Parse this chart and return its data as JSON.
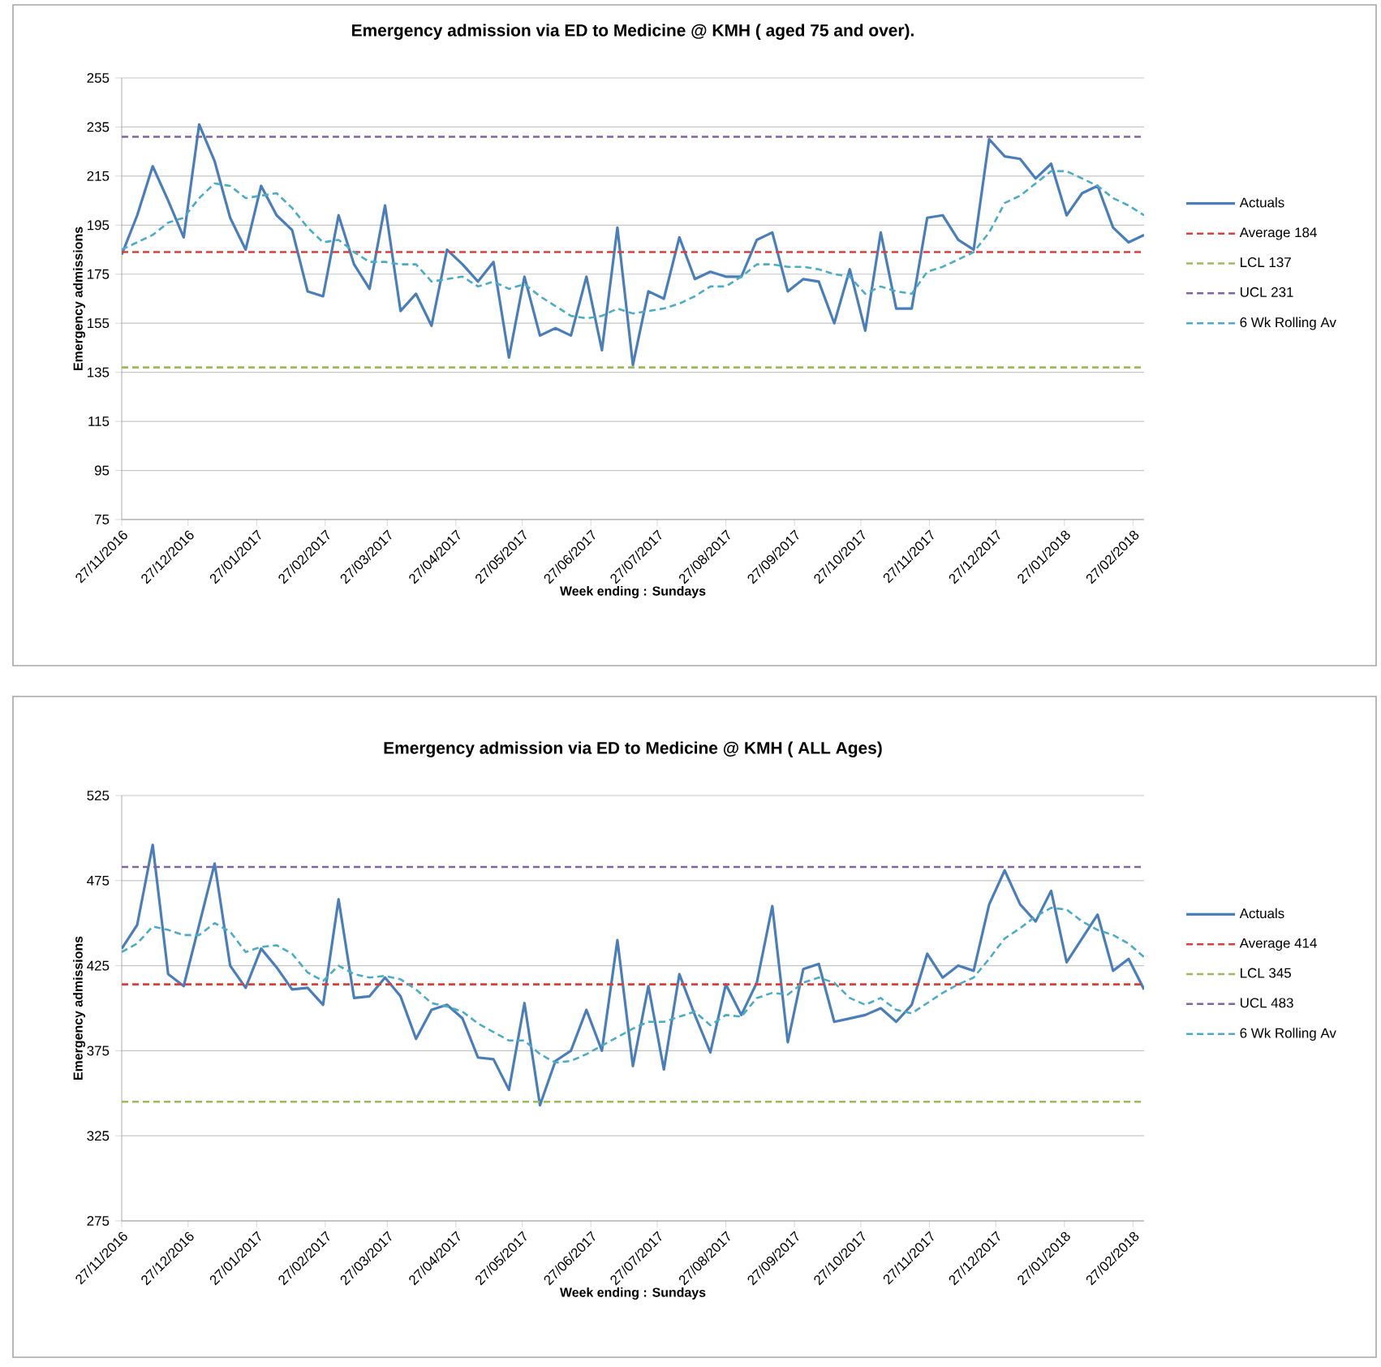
{
  "chart_data": [
    {
      "type": "line",
      "title": "Emergency admission via ED to Medicine @ KMH ( aged 75 and over).",
      "xlabel": "Week ending : Sundays",
      "ylabel": "Emergency admissions",
      "x": [
        "2016-11-27",
        "2016-12-04",
        "2016-12-11",
        "2016-12-18",
        "2016-12-25",
        "2017-01-01",
        "2017-01-08",
        "2017-01-15",
        "2017-01-22",
        "2017-01-29",
        "2017-02-05",
        "2017-02-12",
        "2017-02-19",
        "2017-02-26",
        "2017-03-05",
        "2017-03-12",
        "2017-03-19",
        "2017-03-26",
        "2017-04-02",
        "2017-04-09",
        "2017-04-16",
        "2017-04-23",
        "2017-04-30",
        "2017-05-07",
        "2017-05-14",
        "2017-05-21",
        "2017-05-28",
        "2017-06-04",
        "2017-06-11",
        "2017-06-18",
        "2017-06-25",
        "2017-07-02",
        "2017-07-09",
        "2017-07-16",
        "2017-07-23",
        "2017-07-30",
        "2017-08-06",
        "2017-08-13",
        "2017-08-20",
        "2017-08-27",
        "2017-09-03",
        "2017-09-10",
        "2017-09-17",
        "2017-09-24",
        "2017-10-01",
        "2017-10-08",
        "2017-10-15",
        "2017-10-22",
        "2017-10-29",
        "2017-11-05",
        "2017-11-12",
        "2017-11-19",
        "2017-11-26",
        "2017-12-03",
        "2017-12-10",
        "2017-12-17",
        "2017-12-24",
        "2017-12-31",
        "2018-01-07",
        "2018-01-14",
        "2018-01-21",
        "2018-01-28",
        "2018-02-04",
        "2018-02-11",
        "2018-02-18",
        "2018-02-25",
        "2018-03-04"
      ],
      "series": [
        {
          "name": "Actuals",
          "color": "#4a7ebb",
          "line_style": "solid",
          "values": [
            183,
            199,
            219,
            205,
            190,
            236,
            221,
            198,
            185,
            211,
            199,
            193,
            168,
            166,
            199,
            179,
            169,
            203,
            160,
            167,
            154,
            185,
            179,
            172,
            180,
            141,
            174,
            150,
            153,
            150,
            174,
            144,
            194,
            138,
            168,
            165,
            190,
            173,
            176,
            174,
            174,
            189,
            192,
            168,
            173,
            172,
            155,
            177,
            152,
            192,
            161,
            161,
            198,
            199,
            189,
            185,
            230,
            223,
            222,
            214,
            220,
            199,
            208,
            211,
            194,
            188,
            191
          ]
        },
        {
          "name": "6 Wk Rolling Av",
          "color": "#4bacc6",
          "line_style": "dashed",
          "values": [
            185,
            188,
            191,
            196,
            198,
            206,
            212,
            211,
            206,
            207,
            208,
            202,
            194,
            188,
            189,
            184,
            180,
            180,
            179,
            179,
            172,
            173,
            174,
            170,
            172,
            169,
            171,
            166,
            162,
            158,
            157,
            158,
            161,
            159,
            160,
            161,
            163,
            166,
            170,
            170,
            174,
            179,
            179,
            178,
            178,
            177,
            175,
            174,
            167,
            170,
            168,
            167,
            176,
            178,
            181,
            184,
            192,
            204,
            207,
            212,
            217,
            217,
            214,
            211,
            206,
            203,
            199
          ]
        }
      ],
      "ref_lines": [
        {
          "axis": "y",
          "value": 184,
          "label": "Average 184",
          "color": "#d9403b",
          "line_style": "dashed"
        },
        {
          "axis": "y",
          "value": 137,
          "label": "LCL 137",
          "color": "#9bbb59",
          "line_style": "dashed"
        },
        {
          "axis": "y",
          "value": 231,
          "label": "UCL 231",
          "color": "#8064a2",
          "line_style": "dashed"
        }
      ],
      "xlim": [
        "2016-11-27",
        "2018-03-04"
      ],
      "xticks": [
        {
          "value": "2016-11-27",
          "label": "27/11/2016"
        },
        {
          "value": "2016-12-27",
          "label": "27/12/2016"
        },
        {
          "value": "2017-01-27",
          "label": "27/01/2017"
        },
        {
          "value": "2017-02-27",
          "label": "27/02/2017"
        },
        {
          "value": "2017-03-27",
          "label": "27/03/2017"
        },
        {
          "value": "2017-04-27",
          "label": "27/04/2017"
        },
        {
          "value": "2017-05-27",
          "label": "27/05/2017"
        },
        {
          "value": "2017-06-27",
          "label": "27/06/2017"
        },
        {
          "value": "2017-07-27",
          "label": "27/07/2017"
        },
        {
          "value": "2017-08-27",
          "label": "27/08/2017"
        },
        {
          "value": "2017-09-27",
          "label": "27/09/2017"
        },
        {
          "value": "2017-10-27",
          "label": "27/10/2017"
        },
        {
          "value": "2017-11-27",
          "label": "27/11/2017"
        },
        {
          "value": "2017-12-27",
          "label": "27/12/2017"
        },
        {
          "value": "2018-01-27",
          "label": "27/01/2018"
        },
        {
          "value": "2018-02-27",
          "label": "27/02/2018"
        }
      ],
      "ylim": [
        75,
        255
      ],
      "yticks": [
        75,
        95,
        115,
        135,
        155,
        175,
        195,
        215,
        235,
        255
      ],
      "grid": "y",
      "legend": "right",
      "marker": "none"
    },
    {
      "type": "line",
      "title": "Emergency admission via ED to Medicine @ KMH ( ALL Ages)",
      "xlabel": "Week ending : Sundays",
      "ylabel": "Emergency admissions",
      "x": [
        "2016-11-27",
        "2016-12-04",
        "2016-12-11",
        "2016-12-18",
        "2016-12-25",
        "2017-01-01",
        "2017-01-08",
        "2017-01-15",
        "2017-01-22",
        "2017-01-29",
        "2017-02-05",
        "2017-02-12",
        "2017-02-19",
        "2017-02-26",
        "2017-03-05",
        "2017-03-12",
        "2017-03-19",
        "2017-03-26",
        "2017-04-02",
        "2017-04-09",
        "2017-04-16",
        "2017-04-23",
        "2017-04-30",
        "2017-05-07",
        "2017-05-14",
        "2017-05-21",
        "2017-05-28",
        "2017-06-04",
        "2017-06-11",
        "2017-06-18",
        "2017-06-25",
        "2017-07-02",
        "2017-07-09",
        "2017-07-16",
        "2017-07-23",
        "2017-07-30",
        "2017-08-06",
        "2017-08-13",
        "2017-08-20",
        "2017-08-27",
        "2017-09-03",
        "2017-09-10",
        "2017-09-17",
        "2017-09-24",
        "2017-10-01",
        "2017-10-08",
        "2017-10-15",
        "2017-10-22",
        "2017-10-29",
        "2017-11-05",
        "2017-11-12",
        "2017-11-19",
        "2017-11-26",
        "2017-12-03",
        "2017-12-10",
        "2017-12-17",
        "2017-12-24",
        "2017-12-31",
        "2018-01-07",
        "2018-01-14",
        "2018-01-21",
        "2018-01-28",
        "2018-02-04",
        "2018-02-11",
        "2018-02-18",
        "2018-02-25",
        "2018-03-04"
      ],
      "series": [
        {
          "name": "Actuals",
          "color": "#4a7ebb",
          "line_style": "solid",
          "values": [
            435,
            449,
            496,
            420,
            413,
            449,
            485,
            425,
            412,
            435,
            424,
            411,
            412,
            402,
            464,
            406,
            407,
            418,
            407,
            382,
            399,
            402,
            394,
            371,
            370,
            352,
            403,
            343,
            369,
            375,
            399,
            375,
            440,
            366,
            413,
            364,
            420,
            396,
            374,
            414,
            396,
            415,
            460,
            380,
            423,
            426,
            392,
            394,
            396,
            400,
            392,
            402,
            432,
            418,
            425,
            422,
            461,
            481,
            461,
            451,
            469,
            427,
            441,
            455,
            422,
            429,
            411
          ]
        },
        {
          "name": "6 Wk Rolling Av",
          "color": "#4bacc6",
          "line_style": "dashed",
          "values": [
            433,
            438,
            448,
            446,
            443,
            443,
            450,
            445,
            433,
            436,
            437,
            432,
            421,
            416,
            425,
            420,
            418,
            419,
            417,
            411,
            403,
            401,
            398,
            391,
            386,
            381,
            381,
            373,
            368,
            369,
            373,
            378,
            383,
            388,
            392,
            392,
            395,
            398,
            390,
            396,
            395,
            406,
            409,
            408,
            415,
            418,
            415,
            406,
            402,
            406,
            399,
            397,
            403,
            409,
            414,
            418,
            429,
            441,
            447,
            454,
            459,
            458,
            451,
            446,
            443,
            438,
            430
          ]
        }
      ],
      "ref_lines": [
        {
          "axis": "y",
          "value": 414,
          "label": "Average 414",
          "color": "#d9403b",
          "line_style": "dashed"
        },
        {
          "axis": "y",
          "value": 345,
          "label": "LCL 345",
          "color": "#9bbb59",
          "line_style": "dashed"
        },
        {
          "axis": "y",
          "value": 483,
          "label": "UCL 483",
          "color": "#8064a2",
          "line_style": "dashed"
        }
      ],
      "xlim": [
        "2016-11-27",
        "2018-03-04"
      ],
      "xticks": [
        {
          "value": "2016-11-27",
          "label": "27/11/2016"
        },
        {
          "value": "2016-12-27",
          "label": "27/12/2016"
        },
        {
          "value": "2017-01-27",
          "label": "27/01/2017"
        },
        {
          "value": "2017-02-27",
          "label": "27/02/2017"
        },
        {
          "value": "2017-03-27",
          "label": "27/03/2017"
        },
        {
          "value": "2017-04-27",
          "label": "27/04/2017"
        },
        {
          "value": "2017-05-27",
          "label": "27/05/2017"
        },
        {
          "value": "2017-06-27",
          "label": "27/06/2017"
        },
        {
          "value": "2017-07-27",
          "label": "27/07/2017"
        },
        {
          "value": "2017-08-27",
          "label": "27/08/2017"
        },
        {
          "value": "2017-09-27",
          "label": "27/09/2017"
        },
        {
          "value": "2017-10-27",
          "label": "27/10/2017"
        },
        {
          "value": "2017-11-27",
          "label": "27/11/2017"
        },
        {
          "value": "2017-12-27",
          "label": "27/12/2017"
        },
        {
          "value": "2018-01-27",
          "label": "27/01/2018"
        },
        {
          "value": "2018-02-27",
          "label": "27/02/2018"
        }
      ],
      "ylim": [
        275,
        525
      ],
      "yticks": [
        275,
        325,
        375,
        425,
        475,
        525
      ],
      "grid": "y",
      "legend": "right",
      "marker": "none"
    }
  ]
}
